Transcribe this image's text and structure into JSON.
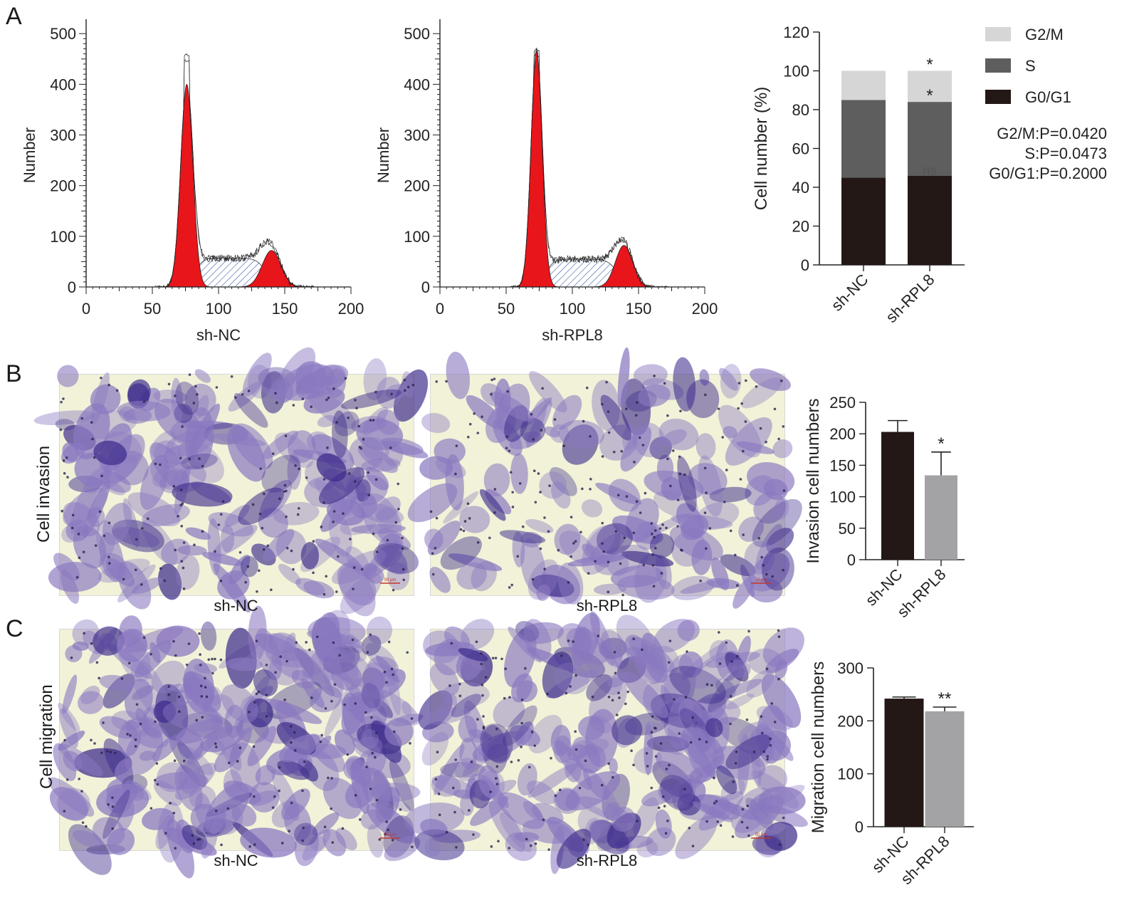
{
  "panels": {
    "a": {
      "letter": "A"
    },
    "b": {
      "letter": "B",
      "row_label": "Cell invasion",
      "captions": [
        "sh-NC",
        "sh-RPL8"
      ],
      "scale_bar_text": "50 μm"
    },
    "c": {
      "letter": "C",
      "row_label": "Cell migration",
      "captions": [
        "sh-NC",
        "sh-RPL8"
      ],
      "scale_bar_text": "50 μm"
    }
  },
  "colors": {
    "red_peak": "#e8151b",
    "hatch": "#3c5ca8",
    "bar_black": "#231815",
    "bar_darkgray": "#5e5e5e",
    "bar_lightgray": "#d6d6d6",
    "bar_gray": "#a3a3a6",
    "stain_dark": "#3e2c8c",
    "stain_mid": "#8a78c0",
    "background_yellow": "#f1f2d8"
  },
  "chart_data": [
    {
      "id": "hist-nc",
      "type": "area",
      "xlabel": "sh-NC",
      "ylabel": "Number",
      "xlim": [
        0,
        200
      ],
      "ylim": [
        0,
        520
      ],
      "xticks": [
        0,
        50,
        100,
        150,
        200
      ],
      "yticks": [
        0,
        100,
        200,
        300,
        400,
        500
      ],
      "series": [
        {
          "role": "g1",
          "peak": {
            "mu": 76,
            "sigma": 4.6,
            "amp": 400
          }
        },
        {
          "role": "s",
          "plateau": {
            "from": 82,
            "to": 130,
            "level": 57
          }
        },
        {
          "role": "g2",
          "peak": {
            "mu": 140,
            "sigma": 7.0,
            "amp": 72
          }
        },
        {
          "role": "raw",
          "max": 460
        }
      ]
    },
    {
      "id": "hist-rpl8",
      "type": "area",
      "xlabel": "sh-RPL8",
      "ylabel": "Number",
      "xlim": [
        0,
        200
      ],
      "ylim": [
        0,
        520
      ],
      "xticks": [
        0,
        50,
        100,
        150,
        200
      ],
      "yticks": [
        0,
        100,
        200,
        300,
        400,
        500
      ],
      "series": [
        {
          "role": "g1",
          "peak": {
            "mu": 73,
            "sigma": 4.2,
            "amp": 465
          }
        },
        {
          "role": "s",
          "plateau": {
            "from": 80,
            "to": 128,
            "level": 55
          }
        },
        {
          "role": "g2",
          "peak": {
            "mu": 139,
            "sigma": 6.5,
            "amp": 82
          }
        },
        {
          "role": "raw",
          "max": 470
        }
      ]
    },
    {
      "id": "cell-cycle",
      "type": "bar",
      "stacked": true,
      "ylabel": "Cell number (%)",
      "ylim": [
        0,
        120
      ],
      "yticks": [
        0,
        20,
        40,
        60,
        80,
        100,
        120
      ],
      "categories": [
        "sh-NC",
        "sh-RPL8"
      ],
      "series": [
        {
          "name": "G0/G1",
          "values": [
            45,
            46
          ],
          "color": "#231815"
        },
        {
          "name": "S",
          "values": [
            40,
            38
          ],
          "color": "#5e5e5e"
        },
        {
          "name": "G2/M",
          "values": [
            15,
            16
          ],
          "color": "#d6d6d6"
        }
      ],
      "significance": {
        "G2/M": "*",
        "S": "*",
        "G0/G1": "ns"
      },
      "legend_position": "top-right",
      "pvalues": [
        "G2/M:P=0.0420",
        "S:P=0.0473",
        "G0/G1:P=0.2000"
      ]
    },
    {
      "id": "invasion",
      "type": "bar",
      "ylabel": "Invasion cell numbers",
      "ylim": [
        0,
        250
      ],
      "yticks": [
        0,
        50,
        100,
        150,
        200,
        250
      ],
      "categories": [
        "sh-NC",
        "sh-RPL8"
      ],
      "values": [
        203,
        134
      ],
      "errors": [
        18,
        37
      ],
      "colors": [
        "#231815",
        "#a3a3a6"
      ],
      "significance": [
        "",
        "*"
      ]
    },
    {
      "id": "migration",
      "type": "bar",
      "ylabel": "Migration cell numbers",
      "ylim": [
        0,
        300
      ],
      "yticks": [
        0,
        100,
        200,
        300
      ],
      "categories": [
        "sh-NC",
        "sh-RPL8"
      ],
      "values": [
        242,
        218
      ],
      "errors": [
        3,
        8
      ],
      "colors": [
        "#231815",
        "#a3a3a6"
      ],
      "significance": [
        "",
        "**"
      ]
    }
  ]
}
